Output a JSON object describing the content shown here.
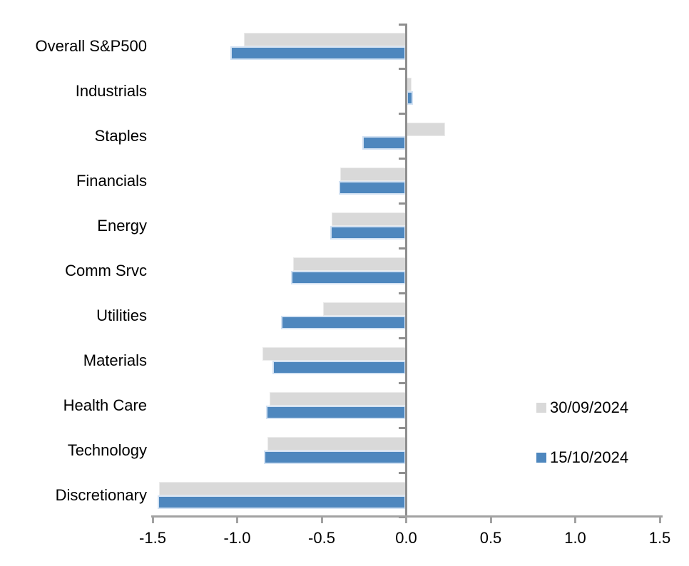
{
  "chart_data": {
    "type": "bar",
    "orientation": "horizontal",
    "title": "",
    "categories": [
      "Overall S&P500",
      "Industrials",
      "Staples",
      "Financials",
      "Energy",
      "Comm Srvc",
      "Utilities",
      "Materials",
      "Health Care",
      "Technology",
      "Discretionary"
    ],
    "series": [
      {
        "name": "30/09/2024",
        "color": "#d9d9d9",
        "values": [
          -0.96,
          0.03,
          0.23,
          -0.39,
          -0.44,
          -0.67,
          -0.49,
          -0.85,
          -0.81,
          -0.82,
          -1.46
        ]
      },
      {
        "name": "15/10/2024",
        "color": "#4e87be",
        "values": [
          -1.04,
          0.04,
          -0.26,
          -0.4,
          -0.45,
          -0.68,
          -0.74,
          -0.79,
          -0.83,
          -0.84,
          -1.47
        ]
      }
    ],
    "xlabel": "",
    "ylabel": "",
    "xlim": [
      -1.5,
      1.5
    ],
    "x_tick_values": [
      -1.5,
      -1.0,
      -0.5,
      0.0,
      0.5,
      1.0,
      1.5
    ],
    "x_tick_labels": [
      "-1.5",
      "-1.0",
      "-0.5",
      "0.0",
      "0.5",
      "1.0",
      "1.5"
    ],
    "grid": false,
    "legend_position": "right-middle"
  },
  "legend": {
    "items": [
      {
        "label": "30/09/2024",
        "color": "#d9d9d9"
      },
      {
        "label": "15/10/2024",
        "color": "#4e87be"
      }
    ]
  },
  "colors": {
    "axis_vertical": "#8f8f8f",
    "axis_horizontal": "#a2a2a2",
    "bar_gray": "#d9d9d9",
    "bar_blue": "#4e87be",
    "bar_blue_border": "#d3e2f3",
    "background": "#ffffff",
    "text": "#000000"
  }
}
